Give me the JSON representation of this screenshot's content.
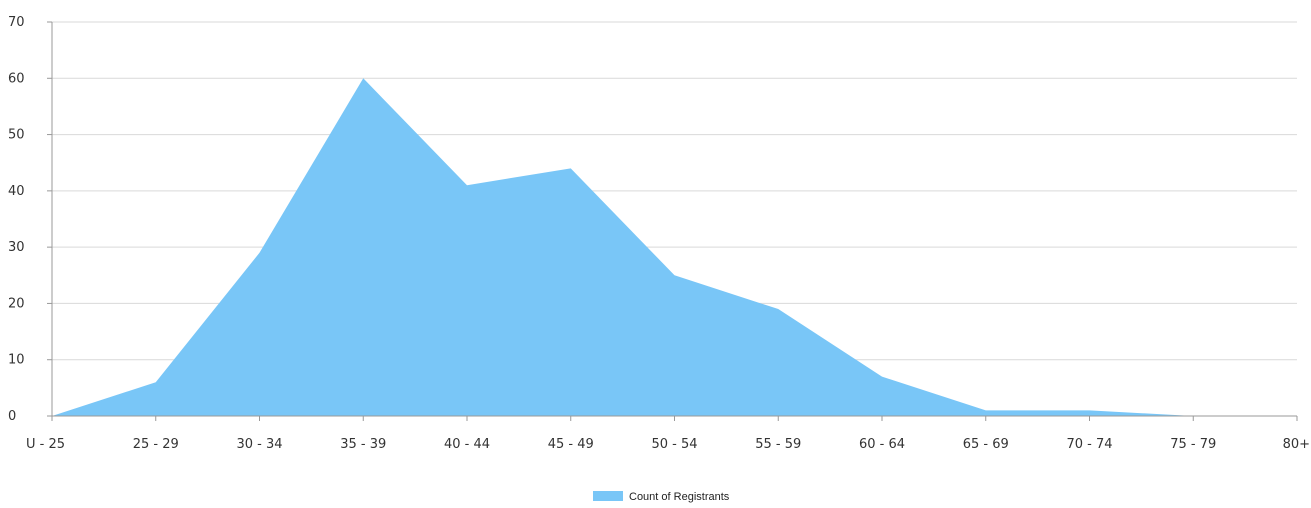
{
  "chart_data": {
    "type": "area",
    "categories": [
      "U - 25",
      "25 - 29",
      "30 - 34",
      "35 - 39",
      "40 - 44",
      "45 - 49",
      "50 - 54",
      "55 - 59",
      "60 - 64",
      "65 - 69",
      "70 - 74",
      "75 - 79",
      "80+"
    ],
    "series": [
      {
        "name": "Count of Registrants",
        "values": [
          0,
          6,
          29,
          60,
          41,
          44,
          25,
          19,
          7,
          1,
          1,
          0,
          0
        ],
        "color": "#79c6f7"
      }
    ],
    "ylim": [
      0,
      70
    ],
    "yticks": [
      0,
      10,
      20,
      30,
      40,
      50,
      60,
      70
    ],
    "grid": true,
    "legend": "bottom-center"
  }
}
